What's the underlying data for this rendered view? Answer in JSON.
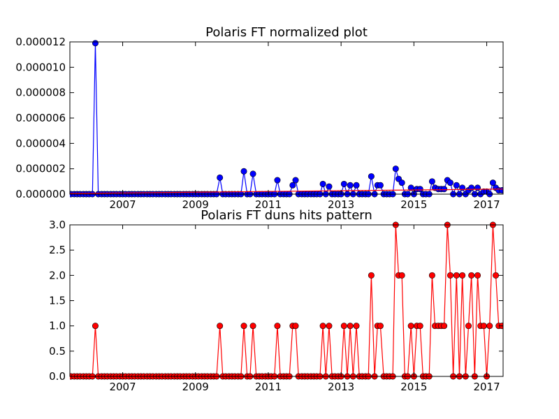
{
  "chart_data": [
    {
      "type": "line",
      "title": "Polaris FT normalized plot",
      "xlabel": "",
      "ylabel": "",
      "xlim": [
        2005.55,
        2017.45
      ],
      "ylim": [
        0,
        1.2e-05
      ],
      "xticks": [
        "2007",
        "2009",
        "2011",
        "2013",
        "2015",
        "2017"
      ],
      "yticks": [
        "0.000000",
        "0.000002",
        "0.000004",
        "0.000006",
        "0.000008",
        "0.000010",
        "0.000012"
      ],
      "grid": false,
      "series": [
        {
          "color": "#0000ff",
          "marker": "circle",
          "x": [
            2005.58,
            2005.67,
            2005.75,
            2005.83,
            2005.92,
            2006.0,
            2006.08,
            2006.17,
            2006.25,
            2006.33,
            2006.42,
            2006.5,
            2006.58,
            2006.67,
            2006.75,
            2006.83,
            2006.92,
            2007.0,
            2007.08,
            2007.17,
            2007.25,
            2007.33,
            2007.42,
            2007.5,
            2007.58,
            2007.67,
            2007.75,
            2007.83,
            2007.92,
            2008.0,
            2008.08,
            2008.17,
            2008.25,
            2008.33,
            2008.42,
            2008.5,
            2008.58,
            2008.67,
            2008.75,
            2008.83,
            2008.92,
            2009.0,
            2009.08,
            2009.17,
            2009.25,
            2009.33,
            2009.42,
            2009.5,
            2009.58,
            2009.67,
            2009.75,
            2009.83,
            2009.92,
            2010.0,
            2010.08,
            2010.17,
            2010.25,
            2010.33,
            2010.42,
            2010.5,
            2010.58,
            2010.67,
            2010.75,
            2010.83,
            2010.92,
            2011.0,
            2011.08,
            2011.17,
            2011.25,
            2011.33,
            2011.42,
            2011.5,
            2011.58,
            2011.67,
            2011.75,
            2011.83,
            2011.92,
            2012.0,
            2012.08,
            2012.17,
            2012.25,
            2012.33,
            2012.42,
            2012.5,
            2012.58,
            2012.67,
            2012.75,
            2012.83,
            2012.92,
            2013.0,
            2013.08,
            2013.17,
            2013.25,
            2013.33,
            2013.42,
            2013.5,
            2013.58,
            2013.67,
            2013.75,
            2013.83,
            2013.92,
            2014.0,
            2014.08,
            2014.17,
            2014.25,
            2014.33,
            2014.42,
            2014.5,
            2014.58,
            2014.67,
            2014.75,
            2014.83,
            2014.92,
            2015.0,
            2015.08,
            2015.17,
            2015.25,
            2015.33,
            2015.42,
            2015.5,
            2015.58,
            2015.67,
            2015.75,
            2015.83,
            2015.92,
            2016.0,
            2016.08,
            2016.17,
            2016.25,
            2016.33,
            2016.42,
            2016.5,
            2016.58,
            2016.67,
            2016.75,
            2016.83,
            2016.92,
            2017.0,
            2017.08,
            2017.17,
            2017.25,
            2017.33,
            2017.42
          ],
          "y": [
            0,
            0,
            0,
            0,
            0,
            0,
            0,
            0,
            1.19e-05,
            0,
            0,
            0,
            0,
            0,
            0,
            0,
            0,
            0,
            0,
            0,
            0,
            0,
            0,
            0,
            0,
            0,
            0,
            0,
            0,
            0,
            0,
            0,
            0,
            0,
            0,
            0,
            0,
            0,
            0,
            0,
            0,
            0,
            0,
            0,
            0,
            0,
            0,
            0,
            0,
            1.3e-06,
            0,
            0,
            0,
            0,
            0,
            0,
            0,
            1.8e-06,
            0,
            0,
            1.6e-06,
            0,
            0,
            0,
            0,
            0,
            0,
            0,
            1.1e-06,
            0,
            0,
            0,
            0,
            7e-07,
            1.1e-06,
            0,
            0,
            0,
            0,
            0,
            0,
            0,
            0,
            8e-07,
            0,
            6e-07,
            0,
            0,
            0,
            0,
            8e-07,
            0,
            7e-07,
            0,
            7e-07,
            0,
            0,
            0,
            0,
            1.4e-06,
            0,
            7e-07,
            7e-07,
            0,
            0,
            0,
            0,
            2e-06,
            1.2e-06,
            9e-07,
            0,
            0,
            5e-07,
            0,
            4e-07,
            4e-07,
            0,
            0,
            0,
            1e-06,
            5e-07,
            4e-07,
            4e-07,
            4e-07,
            1.1e-06,
            9e-07,
            0,
            7e-07,
            0,
            5e-07,
            0,
            3e-07,
            5e-07,
            0,
            5e-07,
            0,
            2e-07,
            2e-07,
            0,
            9e-07,
            5e-07,
            3e-07,
            3e-07
          ]
        },
        {
          "color": "#ff0000",
          "marker": "none",
          "x": [
            2005.55,
            2017.45
          ],
          "y": [
            5e-08,
            4e-07
          ]
        }
      ]
    },
    {
      "type": "line",
      "title": "Polaris FT duns hits pattern",
      "xlabel": "",
      "ylabel": "",
      "xlim": [
        2005.55,
        2017.45
      ],
      "ylim": [
        0,
        3
      ],
      "xticks": [
        "2007",
        "2009",
        "2011",
        "2013",
        "2015",
        "2017"
      ],
      "yticks": [
        "0.0",
        "0.5",
        "1.0",
        "1.5",
        "2.0",
        "2.5",
        "3.0"
      ],
      "grid": false,
      "series": [
        {
          "color": "#ff0000",
          "marker": "circle",
          "x": [
            2005.58,
            2005.67,
            2005.75,
            2005.83,
            2005.92,
            2006.0,
            2006.08,
            2006.17,
            2006.25,
            2006.33,
            2006.42,
            2006.5,
            2006.58,
            2006.67,
            2006.75,
            2006.83,
            2006.92,
            2007.0,
            2007.08,
            2007.17,
            2007.25,
            2007.33,
            2007.42,
            2007.5,
            2007.58,
            2007.67,
            2007.75,
            2007.83,
            2007.92,
            2008.0,
            2008.08,
            2008.17,
            2008.25,
            2008.33,
            2008.42,
            2008.5,
            2008.58,
            2008.67,
            2008.75,
            2008.83,
            2008.92,
            2009.0,
            2009.08,
            2009.17,
            2009.25,
            2009.33,
            2009.42,
            2009.5,
            2009.58,
            2009.67,
            2009.75,
            2009.83,
            2009.92,
            2010.0,
            2010.08,
            2010.17,
            2010.25,
            2010.33,
            2010.42,
            2010.5,
            2010.58,
            2010.67,
            2010.75,
            2010.83,
            2010.92,
            2011.0,
            2011.08,
            2011.17,
            2011.25,
            2011.33,
            2011.42,
            2011.5,
            2011.58,
            2011.67,
            2011.75,
            2011.83,
            2011.92,
            2012.0,
            2012.08,
            2012.17,
            2012.25,
            2012.33,
            2012.42,
            2012.5,
            2012.58,
            2012.67,
            2012.75,
            2012.83,
            2012.92,
            2013.0,
            2013.08,
            2013.17,
            2013.25,
            2013.33,
            2013.42,
            2013.5,
            2013.58,
            2013.67,
            2013.75,
            2013.83,
            2013.92,
            2014.0,
            2014.08,
            2014.17,
            2014.25,
            2014.33,
            2014.42,
            2014.5,
            2014.58,
            2014.67,
            2014.75,
            2014.83,
            2014.92,
            2015.0,
            2015.08,
            2015.17,
            2015.25,
            2015.33,
            2015.42,
            2015.5,
            2015.58,
            2015.67,
            2015.75,
            2015.83,
            2015.92,
            2016.0,
            2016.08,
            2016.17,
            2016.25,
            2016.33,
            2016.42,
            2016.5,
            2016.58,
            2016.67,
            2016.75,
            2016.83,
            2016.92,
            2017.0,
            2017.08,
            2017.17,
            2017.25,
            2017.33,
            2017.42
          ],
          "y": [
            0,
            0,
            0,
            0,
            0,
            0,
            0,
            0,
            1,
            0,
            0,
            0,
            0,
            0,
            0,
            0,
            0,
            0,
            0,
            0,
            0,
            0,
            0,
            0,
            0,
            0,
            0,
            0,
            0,
            0,
            0,
            0,
            0,
            0,
            0,
            0,
            0,
            0,
            0,
            0,
            0,
            0,
            0,
            0,
            0,
            0,
            0,
            0,
            0,
            1,
            0,
            0,
            0,
            0,
            0,
            0,
            0,
            1,
            0,
            0,
            1,
            0,
            0,
            0,
            0,
            0,
            0,
            0,
            1,
            0,
            0,
            0,
            0,
            1,
            1,
            0,
            0,
            0,
            0,
            0,
            0,
            0,
            0,
            1,
            0,
            1,
            0,
            0,
            0,
            0,
            1,
            0,
            1,
            0,
            1,
            0,
            0,
            0,
            0,
            2,
            0,
            1,
            1,
            0,
            0,
            0,
            0,
            3,
            2,
            2,
            0,
            0,
            1,
            0,
            1,
            1,
            0,
            0,
            0,
            2,
            1,
            1,
            1,
            1,
            3,
            2,
            0,
            2,
            0,
            2,
            0,
            1,
            2,
            0,
            2,
            1,
            1,
            0,
            1,
            3,
            2,
            1,
            1
          ]
        }
      ]
    }
  ]
}
